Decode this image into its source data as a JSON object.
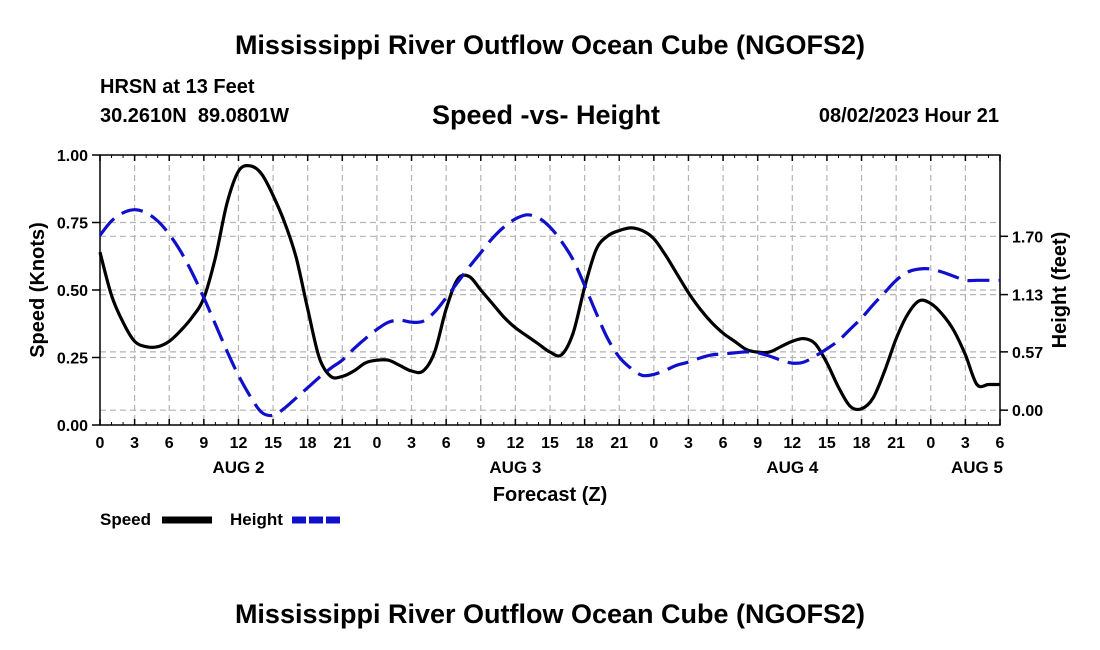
{
  "header": {
    "title": "Mississippi River Outflow Ocean Cube (NGOFS2)",
    "station": "HRSN at 13 Feet",
    "coords": "30.2610N  89.0801W",
    "subtitle": "Speed -vs- Height",
    "datetime": "08/02/2023 Hour 21"
  },
  "footer": {
    "title": "Mississippi River Outflow Ocean Cube (NGOFS2)"
  },
  "colors": {
    "speed": "#000000",
    "height": "#1010cc",
    "grid": "#b4b4b4"
  },
  "chart_data": {
    "type": "line",
    "xlabel": "Forecast (Z)",
    "ylabel": "Speed (Knots)",
    "y2label": "Height (feet)",
    "xlim": [
      0,
      78
    ],
    "ylim": [
      0,
      1.0
    ],
    "y2lim": [
      -0.145,
      2.495
    ],
    "x_ticks": [
      0,
      3,
      6,
      9,
      12,
      15,
      18,
      21,
      24,
      27,
      30,
      33,
      36,
      39,
      42,
      45,
      48,
      51,
      54,
      57,
      60,
      63,
      66,
      69,
      72,
      75,
      78
    ],
    "x_tick_labels": [
      "0",
      "3",
      "6",
      "9",
      "12",
      "15",
      "18",
      "21",
      "0",
      "3",
      "6",
      "9",
      "12",
      "15",
      "18",
      "21",
      "0",
      "3",
      "6",
      "9",
      "12",
      "15",
      "18",
      "21",
      "0",
      "3",
      "6"
    ],
    "y_ticks": [
      0.0,
      0.25,
      0.5,
      0.75,
      1.0
    ],
    "y_tick_labels": [
      "0.00",
      "0.25",
      "0.50",
      "0.75",
      "1.00"
    ],
    "y2_ticks": [
      0.0,
      0.57,
      1.13,
      1.7
    ],
    "y2_tick_labels": [
      "0.00",
      "0.57",
      "1.13",
      "1.70"
    ],
    "day_labels": [
      {
        "label": "AUG 2",
        "x": 12
      },
      {
        "label": "AUG 3",
        "x": 36
      },
      {
        "label": "AUG 4",
        "x": 60
      },
      {
        "label": "AUG 5",
        "x": 76
      }
    ],
    "legend": [
      {
        "name": "Speed",
        "style": "solid"
      },
      {
        "name": "Height",
        "style": "dashed"
      }
    ],
    "series": [
      {
        "name": "Speed",
        "axis": "left",
        "style": "solid",
        "x": [
          0,
          1,
          2,
          3,
          4,
          5,
          6,
          7,
          8,
          9,
          10,
          11,
          12,
          13,
          14,
          15,
          16,
          17,
          18,
          19,
          20,
          21,
          22,
          23,
          24,
          25,
          26,
          27,
          28,
          29,
          30,
          31,
          32,
          33,
          34,
          35,
          36,
          37,
          38,
          39,
          40,
          41,
          42,
          43,
          44,
          45,
          46,
          47,
          48,
          49,
          50,
          51,
          52,
          53,
          54,
          55,
          56,
          57,
          58,
          59,
          60,
          61,
          62,
          63,
          64,
          65,
          66,
          67,
          68,
          69,
          70,
          71,
          72,
          73,
          74,
          75,
          76,
          77,
          78
        ],
        "values": [
          0.64,
          0.48,
          0.38,
          0.31,
          0.29,
          0.29,
          0.31,
          0.35,
          0.4,
          0.47,
          0.62,
          0.82,
          0.94,
          0.96,
          0.93,
          0.85,
          0.75,
          0.62,
          0.43,
          0.25,
          0.18,
          0.18,
          0.2,
          0.23,
          0.24,
          0.24,
          0.22,
          0.2,
          0.2,
          0.27,
          0.43,
          0.54,
          0.55,
          0.5,
          0.45,
          0.4,
          0.36,
          0.33,
          0.3,
          0.27,
          0.26,
          0.34,
          0.51,
          0.65,
          0.7,
          0.72,
          0.73,
          0.72,
          0.69,
          0.63,
          0.56,
          0.49,
          0.43,
          0.38,
          0.34,
          0.31,
          0.28,
          0.27,
          0.27,
          0.29,
          0.31,
          0.32,
          0.3,
          0.23,
          0.14,
          0.07,
          0.06,
          0.1,
          0.2,
          0.32,
          0.41,
          0.46,
          0.45,
          0.41,
          0.35,
          0.26,
          0.15,
          0.15,
          0.15
        ]
      },
      {
        "name": "Height",
        "axis": "right",
        "style": "dashed",
        "x": [
          0,
          1,
          2,
          3,
          4,
          5,
          6,
          7,
          8,
          9,
          10,
          11,
          12,
          13,
          14,
          15,
          16,
          17,
          18,
          19,
          20,
          21,
          22,
          23,
          24,
          25,
          26,
          27,
          28,
          29,
          30,
          31,
          32,
          33,
          34,
          35,
          36,
          37,
          38,
          39,
          40,
          41,
          42,
          43,
          44,
          45,
          46,
          47,
          48,
          49,
          50,
          51,
          52,
          53,
          54,
          55,
          56,
          57,
          58,
          59,
          60,
          61,
          62,
          63,
          64,
          65,
          66,
          67,
          68,
          69,
          70,
          71,
          72,
          73,
          74,
          75,
          76,
          77,
          78
        ],
        "values": [
          1.71,
          1.85,
          1.93,
          1.96,
          1.93,
          1.85,
          1.72,
          1.55,
          1.34,
          1.1,
          0.84,
          0.58,
          0.34,
          0.14,
          -0.02,
          -0.05,
          0.02,
          0.12,
          0.22,
          0.32,
          0.41,
          0.49,
          0.6,
          0.7,
          0.79,
          0.86,
          0.88,
          0.86,
          0.87,
          0.96,
          1.1,
          1.25,
          1.4,
          1.54,
          1.68,
          1.79,
          1.87,
          1.91,
          1.88,
          1.79,
          1.65,
          1.47,
          1.22,
          0.95,
          0.7,
          0.52,
          0.41,
          0.34,
          0.35,
          0.39,
          0.44,
          0.47,
          0.51,
          0.54,
          0.55,
          0.56,
          0.57,
          0.56,
          0.53,
          0.49,
          0.46,
          0.47,
          0.53,
          0.6,
          0.68,
          0.79,
          0.9,
          1.03,
          1.15,
          1.27,
          1.35,
          1.38,
          1.38,
          1.35,
          1.31,
          1.27,
          1.27,
          1.27,
          1.27
        ]
      }
    ]
  }
}
